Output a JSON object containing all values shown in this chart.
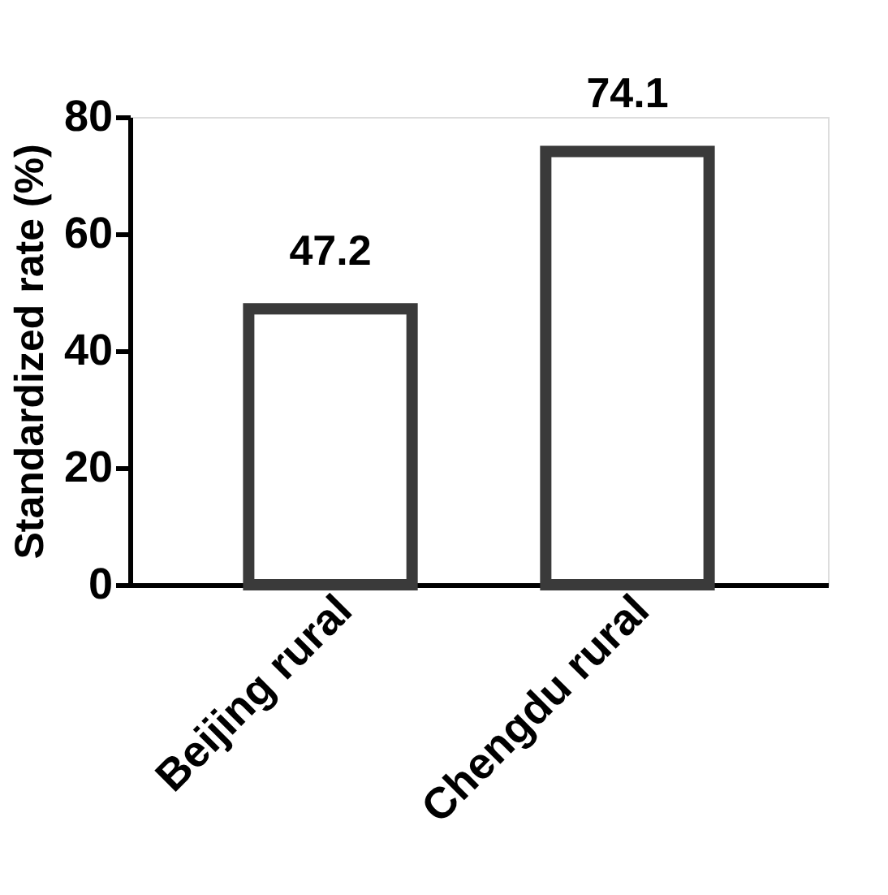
{
  "chart_data": {
    "type": "bar",
    "categories": [
      "Beijing rural",
      "Chengdu rural"
    ],
    "values": [
      47.2,
      74.1
    ],
    "color": "#3a3a3a",
    "ylabel": "Standardized rate (%)",
    "ylim": [
      0,
      80
    ],
    "yticks": [
      0,
      20,
      40,
      60,
      80
    ],
    "data_labels": true,
    "grid": false
  }
}
